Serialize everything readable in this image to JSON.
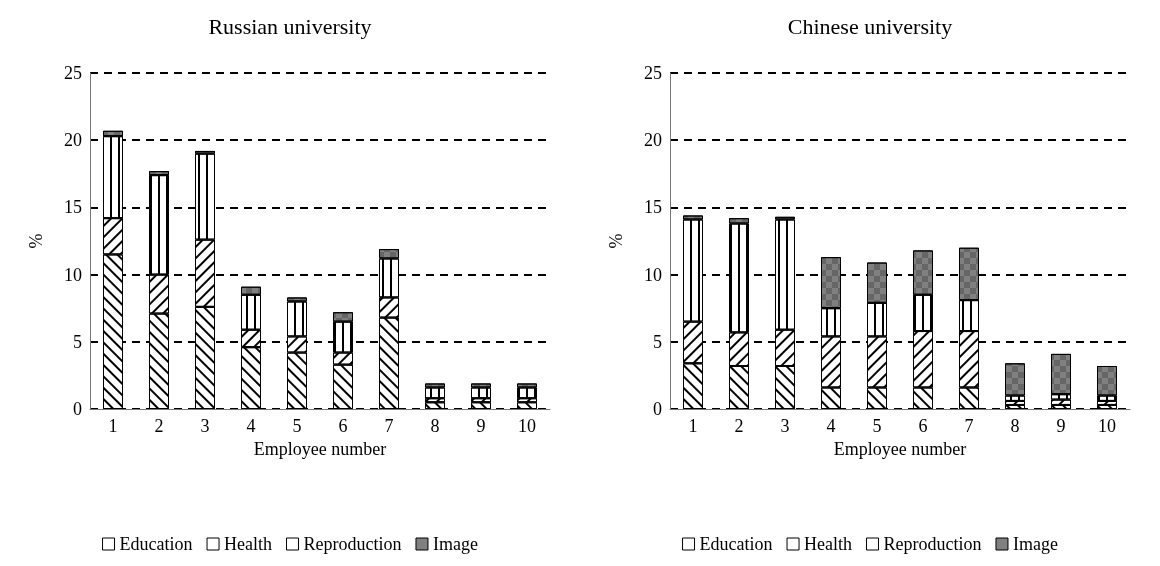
{
  "chart_data": [
    {
      "type": "bar",
      "title": "Russian university",
      "xlabel": "Employee number",
      "ylabel": "%",
      "categories": [
        "1",
        "2",
        "3",
        "4",
        "5",
        "6",
        "7",
        "8",
        "9",
        "10"
      ],
      "stacked": true,
      "ylim": [
        0,
        25
      ],
      "yticks": [
        0,
        5,
        10,
        15,
        20,
        25
      ],
      "grid": "y",
      "legend": "bottom",
      "series": [
        {
          "name": "Education",
          "color": "#ffffff",
          "values": [
            11.5,
            7.1,
            7.6,
            4.6,
            4.2,
            3.3,
            6.8,
            0.5,
            0.5,
            0.5
          ]
        },
        {
          "name": "Health",
          "color": "#ffffff",
          "values": [
            2.7,
            2.9,
            5.0,
            1.3,
            1.2,
            0.9,
            1.5,
            0.3,
            0.3,
            0.3
          ]
        },
        {
          "name": "Reproduction",
          "color": "#ffffff",
          "values": [
            6.1,
            7.4,
            6.4,
            2.6,
            2.6,
            2.3,
            2.9,
            0.8,
            0.8,
            0.8
          ]
        },
        {
          "name": "Image",
          "color": "#808080",
          "values": [
            0.4,
            0.3,
            0.2,
            0.6,
            0.3,
            0.7,
            0.7,
            0.3,
            0.3,
            0.3
          ]
        }
      ]
    },
    {
      "type": "bar",
      "title": "Chinese university",
      "xlabel": "Employee number",
      "ylabel": "%",
      "categories": [
        "1",
        "2",
        "3",
        "4",
        "5",
        "6",
        "7",
        "8",
        "9",
        "10"
      ],
      "stacked": true,
      "ylim": [
        0,
        25
      ],
      "yticks": [
        0,
        5,
        10,
        15,
        20,
        25
      ],
      "grid": "y",
      "legend": "bottom",
      "series": [
        {
          "name": "Education",
          "color": "#ffffff",
          "values": [
            3.4,
            3.2,
            3.2,
            1.6,
            1.6,
            1.6,
            1.6,
            0.3,
            0.3,
            0.3
          ]
        },
        {
          "name": "Health",
          "color": "#ffffff",
          "values": [
            3.1,
            2.5,
            2.7,
            3.8,
            3.8,
            4.2,
            4.2,
            0.3,
            0.4,
            0.3
          ]
        },
        {
          "name": "Reproduction",
          "color": "#ffffff",
          "values": [
            7.6,
            8.1,
            8.2,
            2.1,
            2.5,
            2.7,
            2.3,
            0.4,
            0.4,
            0.4
          ]
        },
        {
          "name": "Image",
          "color": "#808080",
          "values": [
            0.3,
            0.4,
            0.2,
            3.8,
            3.0,
            3.3,
            3.9,
            2.4,
            3.0,
            2.2
          ]
        }
      ]
    }
  ]
}
